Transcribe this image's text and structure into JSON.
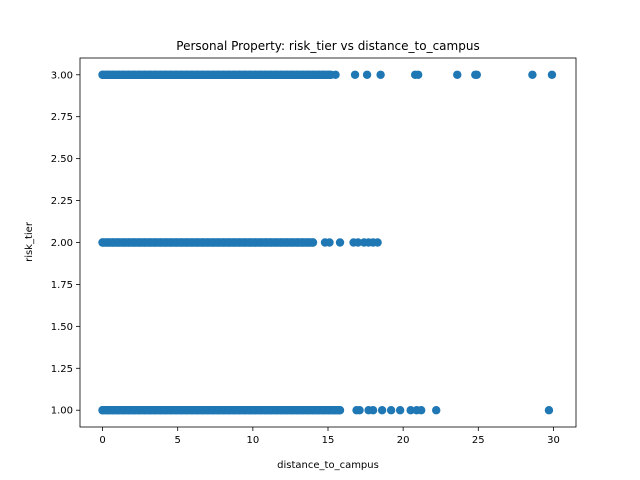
{
  "chart_data": {
    "type": "scatter",
    "title": "Personal Property: risk_tier vs distance_to_campus",
    "xlabel": "distance_to_campus",
    "ylabel": "risk_tier",
    "xlim": [
      -1.5,
      31.5
    ],
    "ylim": [
      0.9,
      3.1
    ],
    "x_ticks": [
      0,
      5,
      10,
      15,
      20,
      25,
      30
    ],
    "y_ticks": [
      1.0,
      1.25,
      1.5,
      1.75,
      2.0,
      2.25,
      2.5,
      2.75,
      3.0
    ],
    "grid": false,
    "legend": "none",
    "marker_color": "#1f77b4",
    "series": [
      {
        "points": [
          {
            "x_from": 0.0,
            "x_to": 15.2,
            "y": 3,
            "kind": "dense"
          },
          {
            "x": 15.5,
            "y": 3
          },
          {
            "x": 16.8,
            "y": 3
          },
          {
            "x": 17.6,
            "y": 3
          },
          {
            "x": 18.5,
            "y": 3
          },
          {
            "x": 20.8,
            "y": 3
          },
          {
            "x": 21.0,
            "y": 3
          },
          {
            "x": 23.6,
            "y": 3
          },
          {
            "x": 24.8,
            "y": 3
          },
          {
            "x": 24.9,
            "y": 3
          },
          {
            "x": 28.6,
            "y": 3
          },
          {
            "x": 29.9,
            "y": 3
          },
          {
            "x_from": 0.0,
            "x_to": 14.0,
            "y": 2,
            "kind": "dense"
          },
          {
            "x": 14.8,
            "y": 2
          },
          {
            "x": 15.1,
            "y": 2
          },
          {
            "x": 15.8,
            "y": 2
          },
          {
            "x": 16.7,
            "y": 2
          },
          {
            "x": 17.0,
            "y": 2
          },
          {
            "x": 17.4,
            "y": 2
          },
          {
            "x": 17.7,
            "y": 2
          },
          {
            "x": 18.0,
            "y": 2
          },
          {
            "x": 18.3,
            "y": 2
          },
          {
            "x_from": 0.0,
            "x_to": 15.8,
            "y": 1,
            "kind": "dense"
          },
          {
            "x": 16.9,
            "y": 1
          },
          {
            "x": 17.1,
            "y": 1
          },
          {
            "x": 17.7,
            "y": 1
          },
          {
            "x": 18.0,
            "y": 1
          },
          {
            "x": 18.6,
            "y": 1
          },
          {
            "x": 19.2,
            "y": 1
          },
          {
            "x": 19.8,
            "y": 1
          },
          {
            "x": 20.5,
            "y": 1
          },
          {
            "x": 20.9,
            "y": 1
          },
          {
            "x": 21.2,
            "y": 1
          },
          {
            "x": 22.2,
            "y": 1
          },
          {
            "x": 29.7,
            "y": 1
          }
        ]
      }
    ]
  }
}
